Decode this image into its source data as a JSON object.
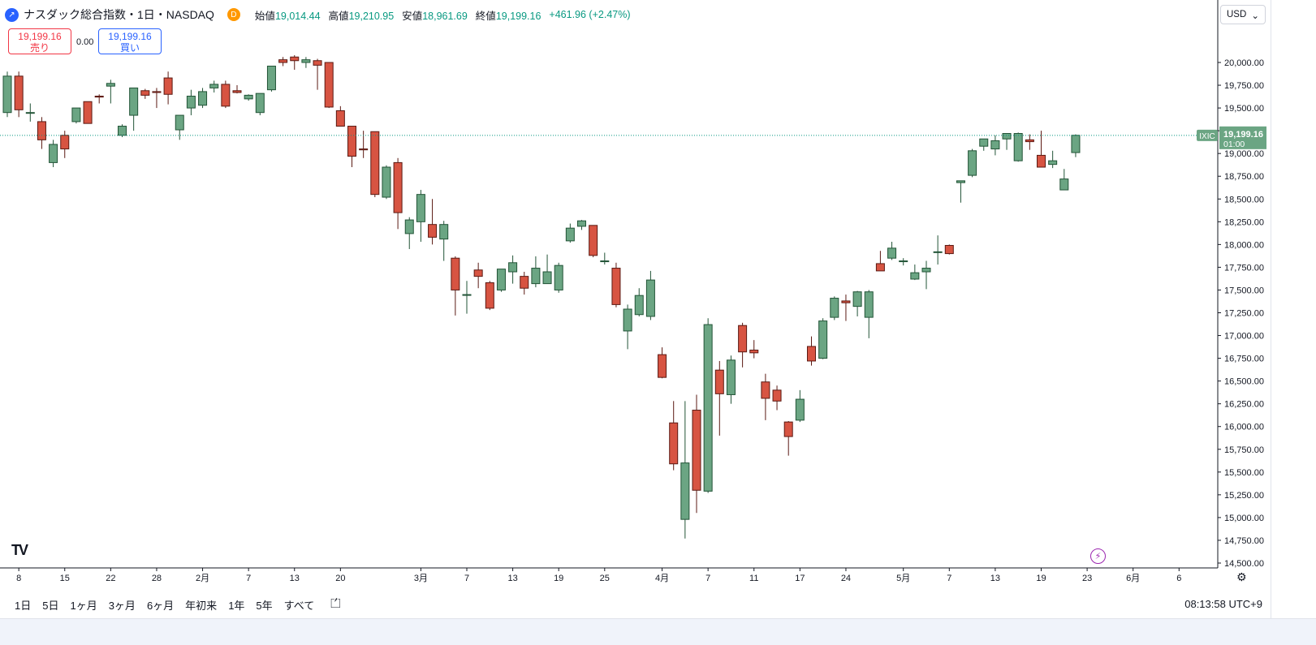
{
  "header": {
    "symbol_icon": "chart-logo-icon",
    "title": "ナスダック総合指数・1日・NASDAQ",
    "badge": "D",
    "open_label": "始値",
    "open": "19,014.44",
    "high_label": "高値",
    "high": "19,210.95",
    "low_label": "安値",
    "low": "18,961.69",
    "close_label": "終値",
    "close": "19,199.16",
    "change": "+461.96 (+2.47%)"
  },
  "quote": {
    "sell_price": "19,199.16",
    "sell_label": "売り",
    "spread": "0.00",
    "buy_price": "19,199.16",
    "buy_label": "買い"
  },
  "currency": {
    "label": "USD",
    "caret": "⌄"
  },
  "price_tag": {
    "symbol": "IXIC",
    "price": "19,199.16",
    "countdown": "01:00"
  },
  "range_buttons": [
    "1日",
    "5日",
    "1ヶ月",
    "3ヶ月",
    "6ヶ月",
    "年初来",
    "1年",
    "5年",
    "すべて"
  ],
  "clock": "08:13:58 UTC+9",
  "icons": {
    "logo": "TV",
    "calendar": "calendar-icon",
    "bolt": "⚡",
    "gear": "⚙"
  },
  "colors": {
    "up": "#6ba583",
    "down": "#d75442",
    "up_border": "#225437",
    "down_border": "#5b1a13",
    "last": "#089981"
  },
  "chart_data": {
    "type": "candlestick",
    "last_price": 19199.16,
    "y_axis_ticks": [
      20000,
      19750,
      19500,
      19250,
      19000,
      18750,
      18500,
      18250,
      18000,
      17750,
      17500,
      17250,
      17000,
      16750,
      16500,
      16250,
      16000,
      15750,
      15500,
      15250,
      15000,
      14750,
      14500
    ],
    "y_axis_labels": [
      "20,000.00",
      "19,750.00",
      "19,500.00",
      "19,250.00",
      "19,000.00",
      "18,750.00",
      "18,500.00",
      "18,250.00",
      "18,000.00",
      "17,750.00",
      "17,500.00",
      "17,250.00",
      "17,000.00",
      "16,750.00",
      "16,500.00",
      "16,250.00",
      "16,000.00",
      "15,750.00",
      "15,500.00",
      "15,250.00",
      "15,000.00",
      "14,750.00",
      "14,500.00"
    ],
    "x_axis_labels": [
      {
        "label": "8",
        "i": 1
      },
      {
        "label": "15",
        "i": 5
      },
      {
        "label": "22",
        "i": 9
      },
      {
        "label": "28",
        "i": 13
      },
      {
        "label": "2月",
        "i": 17
      },
      {
        "label": "7",
        "i": 21
      },
      {
        "label": "13",
        "i": 25
      },
      {
        "label": "20",
        "i": 29
      },
      {
        "label": "3月",
        "i": 36
      },
      {
        "label": "7",
        "i": 40
      },
      {
        "label": "13",
        "i": 44
      },
      {
        "label": "19",
        "i": 48
      },
      {
        "label": "25",
        "i": 52
      },
      {
        "label": "4月",
        "i": 57
      },
      {
        "label": "7",
        "i": 61
      },
      {
        "label": "11",
        "i": 65
      },
      {
        "label": "17",
        "i": 69
      },
      {
        "label": "24",
        "i": 73
      },
      {
        "label": "5月",
        "i": 78
      },
      {
        "label": "7",
        "i": 82
      },
      {
        "label": "13",
        "i": 86
      },
      {
        "label": "19",
        "i": 90
      },
      {
        "label": "23",
        "i": 94
      },
      {
        "label": "6月",
        "i": 98
      },
      {
        "label": "6",
        "i": 102
      }
    ],
    "candles": [
      {
        "o": 19450,
        "h": 19900,
        "l": 19400,
        "c": 19850
      },
      {
        "o": 19850,
        "h": 19900,
        "l": 19400,
        "c": 19480
      },
      {
        "o": 19450,
        "h": 19550,
        "l": 19350,
        "c": 19450
      },
      {
        "o": 19350,
        "h": 19400,
        "l": 19050,
        "c": 19150
      },
      {
        "o": 18900,
        "h": 19150,
        "l": 18850,
        "c": 19100
      },
      {
        "o": 19200,
        "h": 19250,
        "l": 18950,
        "c": 19050
      },
      {
        "o": 19350,
        "h": 19500,
        "l": 19330,
        "c": 19500
      },
      {
        "o": 19570,
        "h": 19570,
        "l": 19330,
        "c": 19330
      },
      {
        "o": 19630,
        "h": 19650,
        "l": 19550,
        "c": 19620
      },
      {
        "o": 19740,
        "h": 19810,
        "l": 19550,
        "c": 19770
      },
      {
        "o": 19200,
        "h": 19320,
        "l": 19180,
        "c": 19300
      },
      {
        "o": 19420,
        "h": 19720,
        "l": 19250,
        "c": 19720
      },
      {
        "o": 19690,
        "h": 19710,
        "l": 19600,
        "c": 19640
      },
      {
        "o": 19680,
        "h": 19720,
        "l": 19500,
        "c": 19670
      },
      {
        "o": 19830,
        "h": 19900,
        "l": 19540,
        "c": 19650
      },
      {
        "o": 19260,
        "h": 19420,
        "l": 19150,
        "c": 19420
      },
      {
        "o": 19500,
        "h": 19700,
        "l": 19420,
        "c": 19630
      },
      {
        "o": 19530,
        "h": 19720,
        "l": 19500,
        "c": 19680
      },
      {
        "o": 19720,
        "h": 19800,
        "l": 19670,
        "c": 19760
      },
      {
        "o": 19760,
        "h": 19800,
        "l": 19500,
        "c": 19520
      },
      {
        "o": 19690,
        "h": 19750,
        "l": 19660,
        "c": 19670
      },
      {
        "o": 19600,
        "h": 19650,
        "l": 19580,
        "c": 19640
      },
      {
        "o": 19450,
        "h": 19660,
        "l": 19420,
        "c": 19660
      },
      {
        "o": 19700,
        "h": 19960,
        "l": 19680,
        "c": 19960
      },
      {
        "o": 20030,
        "h": 20060,
        "l": 19960,
        "c": 20000
      },
      {
        "o": 20060,
        "h": 20080,
        "l": 19920,
        "c": 20020
      },
      {
        "o": 20000,
        "h": 20060,
        "l": 19940,
        "c": 20030
      },
      {
        "o": 20020,
        "h": 20040,
        "l": 19700,
        "c": 19970
      },
      {
        "o": 20000,
        "h": 20000,
        "l": 19500,
        "c": 19510
      },
      {
        "o": 19470,
        "h": 19520,
        "l": 19300,
        "c": 19300
      },
      {
        "o": 19300,
        "h": 19300,
        "l": 18850,
        "c": 18970
      },
      {
        "o": 19050,
        "h": 19250,
        "l": 18950,
        "c": 19040
      },
      {
        "o": 19240,
        "h": 19240,
        "l": 18520,
        "c": 18550
      },
      {
        "o": 18520,
        "h": 18870,
        "l": 18500,
        "c": 18850
      },
      {
        "o": 18900,
        "h": 18950,
        "l": 18170,
        "c": 18350
      },
      {
        "o": 18120,
        "h": 18300,
        "l": 17950,
        "c": 18270
      },
      {
        "o": 18250,
        "h": 18600,
        "l": 18030,
        "c": 18550
      },
      {
        "o": 18220,
        "h": 18500,
        "l": 18000,
        "c": 18080
      },
      {
        "o": 18060,
        "h": 18260,
        "l": 17820,
        "c": 18220
      },
      {
        "o": 17850,
        "h": 17870,
        "l": 17220,
        "c": 17500
      },
      {
        "o": 17450,
        "h": 17600,
        "l": 17240,
        "c": 17450
      },
      {
        "o": 17720,
        "h": 17800,
        "l": 17520,
        "c": 17650
      },
      {
        "o": 17580,
        "h": 17600,
        "l": 17280,
        "c": 17300
      },
      {
        "o": 17500,
        "h": 17730,
        "l": 17480,
        "c": 17730
      },
      {
        "o": 17700,
        "h": 17880,
        "l": 17570,
        "c": 17800
      },
      {
        "o": 17650,
        "h": 17700,
        "l": 17450,
        "c": 17520
      },
      {
        "o": 17570,
        "h": 17870,
        "l": 17530,
        "c": 17740
      },
      {
        "o": 17570,
        "h": 17890,
        "l": 17570,
        "c": 17700
      },
      {
        "o": 17500,
        "h": 17800,
        "l": 17470,
        "c": 17770
      },
      {
        "o": 18040,
        "h": 18230,
        "l": 18020,
        "c": 18180
      },
      {
        "o": 18200,
        "h": 18270,
        "l": 18160,
        "c": 18260
      },
      {
        "o": 18210,
        "h": 18210,
        "l": 17860,
        "c": 17880
      },
      {
        "o": 17820,
        "h": 17910,
        "l": 17780,
        "c": 17820
      },
      {
        "o": 17740,
        "h": 17800,
        "l": 17310,
        "c": 17340
      },
      {
        "o": 17050,
        "h": 17340,
        "l": 16850,
        "c": 17290
      },
      {
        "o": 17230,
        "h": 17520,
        "l": 17210,
        "c": 17440
      },
      {
        "o": 17210,
        "h": 17710,
        "l": 17170,
        "c": 17610
      },
      {
        "o": 16790,
        "h": 16870,
        "l": 16530,
        "c": 16540
      },
      {
        "o": 16040,
        "h": 16280,
        "l": 15520,
        "c": 15590
      },
      {
        "o": 14980,
        "h": 16280,
        "l": 14770,
        "c": 15600
      },
      {
        "o": 16180,
        "h": 16350,
        "l": 15050,
        "c": 15300
      },
      {
        "o": 15290,
        "h": 17190,
        "l": 15270,
        "c": 17120
      },
      {
        "o": 16620,
        "h": 16720,
        "l": 15900,
        "c": 16360
      },
      {
        "o": 16350,
        "h": 16780,
        "l": 16250,
        "c": 16730
      },
      {
        "o": 17110,
        "h": 17140,
        "l": 16650,
        "c": 16820
      },
      {
        "o": 16840,
        "h": 16950,
        "l": 16750,
        "c": 16810
      },
      {
        "o": 16490,
        "h": 16580,
        "l": 16070,
        "c": 16310
      },
      {
        "o": 16400,
        "h": 16450,
        "l": 16180,
        "c": 16280
      },
      {
        "o": 16050,
        "h": 16060,
        "l": 15680,
        "c": 15890
      },
      {
        "o": 16070,
        "h": 16400,
        "l": 16050,
        "c": 16300
      },
      {
        "o": 16880,
        "h": 16990,
        "l": 16670,
        "c": 16720
      },
      {
        "o": 16750,
        "h": 17190,
        "l": 16740,
        "c": 17160
      },
      {
        "o": 17200,
        "h": 17430,
        "l": 17170,
        "c": 17410
      },
      {
        "o": 17380,
        "h": 17450,
        "l": 17160,
        "c": 17360
      },
      {
        "o": 17320,
        "h": 17490,
        "l": 17210,
        "c": 17480
      },
      {
        "o": 17200,
        "h": 17500,
        "l": 16970,
        "c": 17480
      },
      {
        "o": 17790,
        "h": 17930,
        "l": 17710,
        "c": 17710
      },
      {
        "o": 17850,
        "h": 18030,
        "l": 17830,
        "c": 17960
      },
      {
        "o": 17820,
        "h": 17850,
        "l": 17770,
        "c": 17820
      },
      {
        "o": 17620,
        "h": 17780,
        "l": 17610,
        "c": 17690
      },
      {
        "o": 17700,
        "h": 17820,
        "l": 17510,
        "c": 17740
      },
      {
        "o": 17920,
        "h": 18100,
        "l": 17780,
        "c": 17920
      },
      {
        "o": 17990,
        "h": 18000,
        "l": 17890,
        "c": 17900
      },
      {
        "o": 18680,
        "h": 18690,
        "l": 18460,
        "c": 18700
      },
      {
        "o": 18760,
        "h": 19050,
        "l": 18740,
        "c": 19030
      },
      {
        "o": 19080,
        "h": 19150,
        "l": 19030,
        "c": 19160
      },
      {
        "o": 19050,
        "h": 19200,
        "l": 18980,
        "c": 19140
      },
      {
        "o": 19160,
        "h": 19200,
        "l": 19040,
        "c": 19220
      },
      {
        "o": 18920,
        "h": 19230,
        "l": 18910,
        "c": 19220
      },
      {
        "o": 19150,
        "h": 19210,
        "l": 19040,
        "c": 19130
      },
      {
        "o": 18980,
        "h": 19250,
        "l": 18860,
        "c": 18850
      },
      {
        "o": 18880,
        "h": 19030,
        "l": 18840,
        "c": 18920
      },
      {
        "o": 18600,
        "h": 18830,
        "l": 18600,
        "c": 18720
      },
      {
        "o": 19010,
        "h": 19210,
        "l": 18960,
        "c": 19200
      }
    ]
  }
}
